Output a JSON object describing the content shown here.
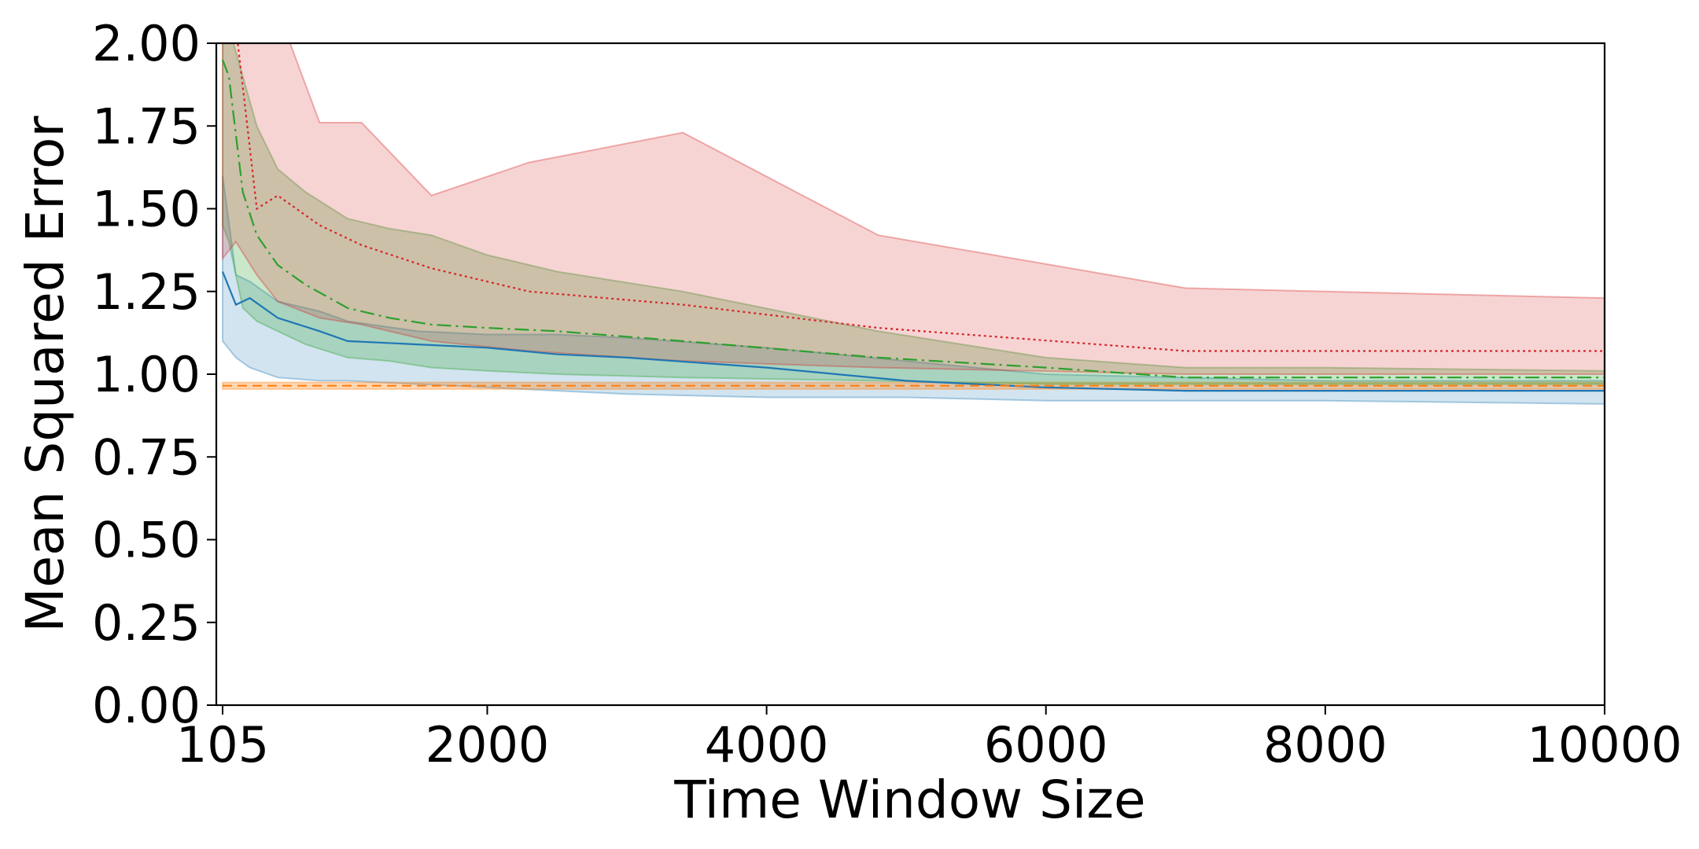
{
  "chart_data": {
    "type": "line",
    "title": "",
    "xlabel": "Time Window Size",
    "ylabel": "Mean Squared Error",
    "xlim": [
      60,
      10000
    ],
    "ylim": [
      0,
      2.0
    ],
    "x_ticks": [
      {
        "value": 105,
        "label": "105"
      },
      {
        "value": 2000,
        "label": "2000"
      },
      {
        "value": 4000,
        "label": "4000"
      },
      {
        "value": 6000,
        "label": "6000"
      },
      {
        "value": 8000,
        "label": "8000"
      },
      {
        "value": 10000,
        "label": "10000"
      }
    ],
    "y_ticks": [
      {
        "value": 0.0,
        "label": "0.00"
      },
      {
        "value": 0.25,
        "label": "0.25"
      },
      {
        "value": 0.5,
        "label": "0.50"
      },
      {
        "value": 0.75,
        "label": "0.75"
      },
      {
        "value": 1.0,
        "label": "1.00"
      },
      {
        "value": 1.25,
        "label": "1.25"
      },
      {
        "value": 1.5,
        "label": "1.50"
      },
      {
        "value": 1.75,
        "label": "1.75"
      },
      {
        "value": 2.0,
        "label": "2.00"
      }
    ],
    "grid": false,
    "legend": "none",
    "series": [
      {
        "color": "#1f77b4",
        "fill_opacity": 0.2,
        "dash": "",
        "stroke_width": 2.2,
        "x": [
          105,
          200,
          300,
          500,
          800,
          1000,
          1500,
          2000,
          2500,
          3000,
          4000,
          5000,
          6000,
          7000,
          8000,
          10000
        ],
        "mean": [
          1.31,
          1.21,
          1.23,
          1.17,
          1.13,
          1.1,
          1.09,
          1.08,
          1.06,
          1.05,
          1.02,
          0.98,
          0.96,
          0.95,
          0.95,
          0.95
        ],
        "lower": [
          1.1,
          1.05,
          1.02,
          0.99,
          0.98,
          0.98,
          0.97,
          0.96,
          0.95,
          0.94,
          0.93,
          0.93,
          0.92,
          0.92,
          0.92,
          0.91
        ],
        "upper": [
          1.6,
          1.3,
          1.28,
          1.22,
          1.19,
          1.16,
          1.13,
          1.12,
          1.12,
          1.11,
          1.08,
          1.04,
          1.0,
          0.99,
          0.98,
          0.98
        ]
      },
      {
        "color": "#ff7f0e",
        "fill_opacity": 0.3,
        "dash": "12,7",
        "stroke_width": 2.2,
        "x": [
          105,
          500,
          1000,
          2000,
          4000,
          6000,
          8000,
          10000
        ],
        "mean": [
          0.965,
          0.965,
          0.965,
          0.965,
          0.965,
          0.965,
          0.965,
          0.965
        ],
        "lower": [
          0.955,
          0.955,
          0.955,
          0.955,
          0.955,
          0.955,
          0.955,
          0.955
        ],
        "upper": [
          0.975,
          0.975,
          0.975,
          0.975,
          0.975,
          0.975,
          0.975,
          0.975
        ]
      },
      {
        "color": "#2ca02c",
        "fill_opacity": 0.25,
        "dash": "18,6,3,6",
        "stroke_width": 2.2,
        "x": [
          105,
          150,
          250,
          350,
          500,
          700,
          1000,
          1300,
          1600,
          2000,
          2500,
          3400,
          4800,
          6000,
          7000,
          8000,
          10000
        ],
        "mean": [
          1.95,
          1.9,
          1.55,
          1.42,
          1.33,
          1.27,
          1.2,
          1.17,
          1.15,
          1.14,
          1.13,
          1.1,
          1.05,
          1.02,
          0.99,
          0.99,
          0.99
        ],
        "lower": [
          1.45,
          1.4,
          1.2,
          1.16,
          1.13,
          1.09,
          1.05,
          1.04,
          1.02,
          1.01,
          1.0,
          0.99,
          0.98,
          0.97,
          0.97,
          0.97,
          0.97
        ],
        "upper": [
          2.1,
          2.05,
          1.9,
          1.75,
          1.62,
          1.55,
          1.47,
          1.44,
          1.42,
          1.36,
          1.31,
          1.25,
          1.13,
          1.05,
          1.02,
          1.02,
          1.01
        ]
      },
      {
        "color": "#d62728",
        "fill_opacity": 0.2,
        "dash": "3,4",
        "stroke_width": 2.2,
        "x": [
          105,
          200,
          350,
          500,
          800,
          1100,
          1600,
          2300,
          3400,
          4800,
          7000,
          8000,
          10000
        ],
        "mean": [
          2.1,
          2.05,
          1.5,
          1.54,
          1.45,
          1.39,
          1.32,
          1.25,
          1.21,
          1.14,
          1.07,
          1.07,
          1.07
        ],
        "lower": [
          1.35,
          1.4,
          1.3,
          1.22,
          1.17,
          1.15,
          1.1,
          1.07,
          1.04,
          1.02,
          1.0,
          1.0,
          1.0
        ],
        "upper": [
          2.3,
          2.3,
          2.2,
          2.1,
          1.76,
          1.76,
          1.54,
          1.64,
          1.73,
          1.42,
          1.26,
          1.25,
          1.23
        ]
      }
    ]
  }
}
